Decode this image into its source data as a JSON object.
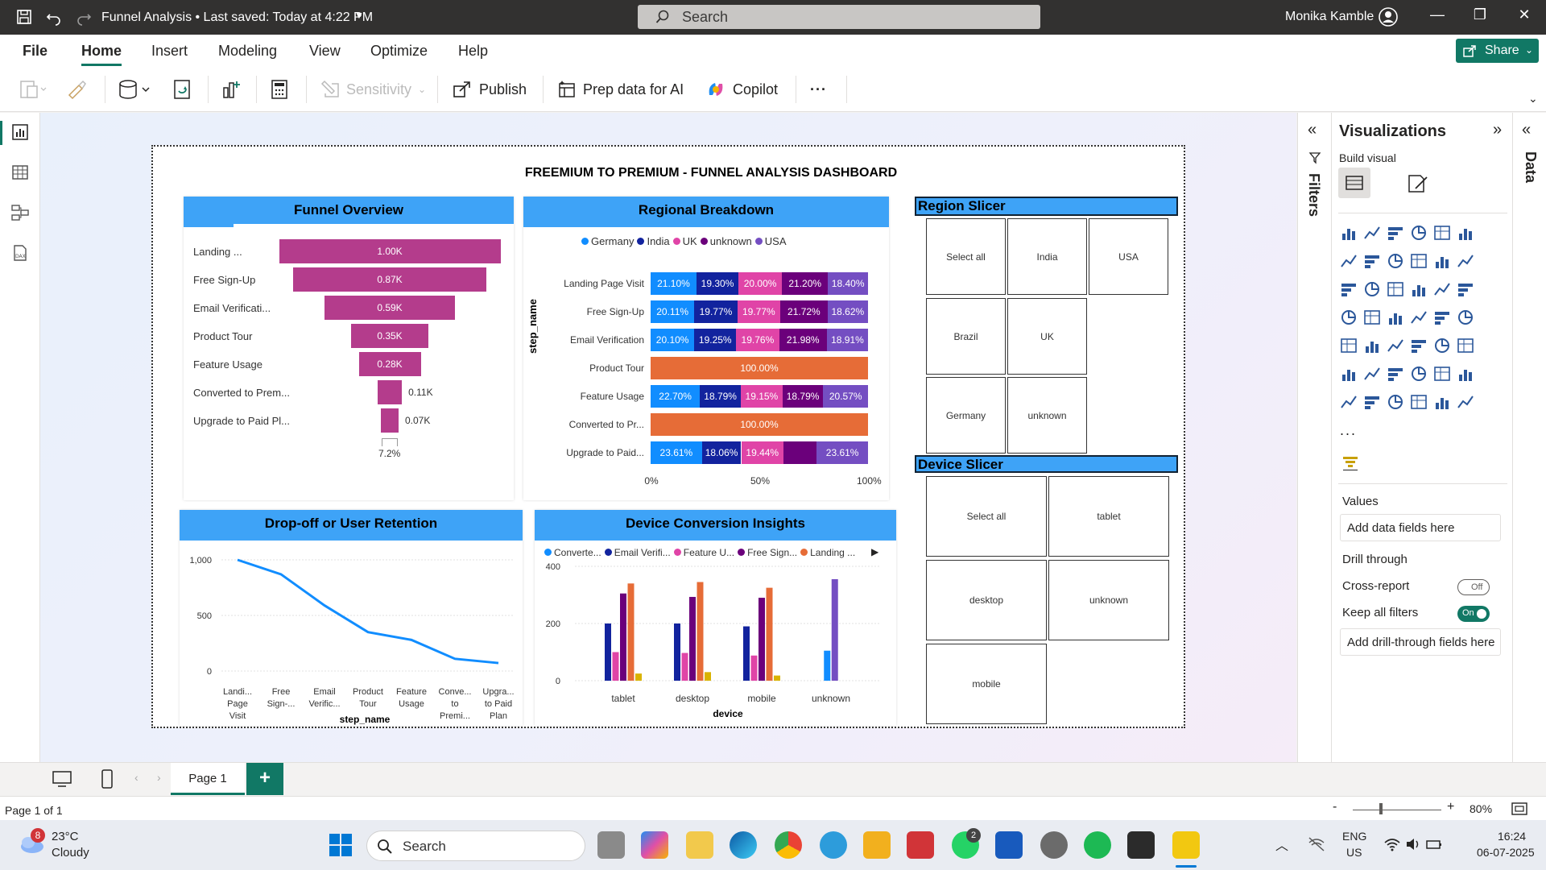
{
  "titlebar": {
    "title": "Funnel Analysis • Last saved: Today at 4:22 PM",
    "search_placeholder": "Search",
    "user": "Monika Kamble"
  },
  "menu": {
    "file": "File",
    "home": "Home",
    "insert": "Insert",
    "modeling": "Modeling",
    "view": "View",
    "optimize": "Optimize",
    "help": "Help",
    "share": "Share"
  },
  "ribbon": {
    "sensitivity": "Sensitivity",
    "publish": "Publish",
    "prep_data": "Prep data for AI",
    "copilot": "Copilot",
    "more": "···"
  },
  "dashboard": {
    "title": "FREEMIUM TO PREMIUM - FUNNEL ANALYSIS DASHBOARD"
  },
  "funnel": {
    "title": "Funnel Overview",
    "rows": [
      {
        "label": "Landing ...",
        "value": "1.00K",
        "fraction": 1.0
      },
      {
        "label": "Free Sign-Up",
        "value": "0.87K",
        "fraction": 0.87
      },
      {
        "label": "Email Verificati...",
        "value": "0.59K",
        "fraction": 0.59
      },
      {
        "label": "Product Tour",
        "value": "0.35K",
        "fraction": 0.35
      },
      {
        "label": "Feature Usage",
        "value": "0.28K",
        "fraction": 0.28
      },
      {
        "label": "Converted to Prem...",
        "value": "0.11K",
        "fraction": 0.11
      },
      {
        "label": "Upgrade to Paid Pl...",
        "value": "0.07K",
        "fraction": 0.07
      }
    ],
    "footer": "7.2%"
  },
  "regional": {
    "title": "Regional Breakdown",
    "legend": [
      "Germany",
      "India",
      "UK",
      "unknown",
      "USA"
    ],
    "ylabel": "step_name",
    "xticks": [
      "0%",
      "50%",
      "100%"
    ],
    "colors": {
      "Germany": "#118dff",
      "India": "#12239e",
      "UK": "#e044a7",
      "unknown": "#6b007b",
      "USA": "#744ec2",
      "single": "#e66c37"
    },
    "rows": [
      {
        "label": "Landing Page Visit",
        "segments": [
          21.1,
          19.3,
          20.0,
          21.2,
          18.4
        ],
        "texts": [
          "21.10%",
          "19.30%",
          "20.00%",
          "21.20%",
          "18.40%"
        ]
      },
      {
        "label": "Free Sign-Up",
        "segments": [
          20.11,
          19.77,
          19.77,
          21.72,
          18.62
        ],
        "texts": [
          "20.11%",
          "19.77%",
          "19.77%",
          "21.72%",
          "18.62%"
        ]
      },
      {
        "label": "Email Verification",
        "segments": [
          20.1,
          19.25,
          19.76,
          21.98,
          18.91
        ],
        "texts": [
          "20.10%",
          "19.25%",
          "19.76%",
          "21.98%",
          "18.91%"
        ]
      },
      {
        "label": "Product Tour",
        "segments": [
          100
        ],
        "texts": [
          "100.00%"
        ],
        "single": true
      },
      {
        "label": "Feature Usage",
        "segments": [
          22.7,
          18.79,
          19.15,
          18.79,
          20.57
        ],
        "texts": [
          "22.70%",
          "18.79%",
          "19.15%",
          "18.79%",
          "20.57%"
        ]
      },
      {
        "label": "Converted to Pr...",
        "segments": [
          100
        ],
        "texts": [
          "100.00%"
        ],
        "single": true
      },
      {
        "label": "Upgrade to Paid...",
        "segments": [
          23.61,
          18.06,
          19.44,
          15.28,
          23.61
        ],
        "texts": [
          "23.61%",
          "18.06%",
          "19.44%",
          "",
          "23.61%"
        ]
      }
    ]
  },
  "dropoff": {
    "title": "Drop-off or User Retention",
    "xlabel": "step_name",
    "yticks": [
      "1,000",
      "500",
      "0"
    ],
    "ymax": 1000,
    "categories": [
      [
        "Landi...",
        "Page",
        "Visit"
      ],
      [
        "Free",
        "Sign-..."
      ],
      [
        "Email",
        "Verific..."
      ],
      [
        "Product",
        "Tour"
      ],
      [
        "Feature",
        "Usage"
      ],
      [
        "Conve...",
        "to",
        "Premi..."
      ],
      [
        "Upgra...",
        "to Paid",
        "Plan"
      ]
    ],
    "values": [
      1000,
      870,
      590,
      350,
      280,
      110,
      72
    ]
  },
  "device": {
    "title": "Device Conversion Insights",
    "legend": [
      "Converte...",
      "Email Verifi...",
      "Feature U...",
      "Free Sign...",
      "Landing ..."
    ],
    "legend_colors": [
      "#118dff",
      "#12239e",
      "#e044a7",
      "#6b007b",
      "#e66c37"
    ],
    "xlabel": "device",
    "yticks": [
      "400",
      "200",
      "0"
    ],
    "ymax": 400,
    "categories": [
      "tablet",
      "desktop",
      "mobile",
      "unknown"
    ],
    "series": [
      {
        "color": "#118dff",
        "values": [
          0,
          0,
          0,
          105
        ]
      },
      {
        "color": "#12239e",
        "values": [
          200,
          200,
          190,
          0
        ]
      },
      {
        "color": "#e044a7",
        "values": [
          100,
          97,
          88,
          0
        ]
      },
      {
        "color": "#6b007b",
        "values": [
          305,
          293,
          290,
          0
        ]
      },
      {
        "color": "#e66c37",
        "values": [
          340,
          345,
          325,
          0
        ]
      },
      {
        "color": "#d9b300",
        "values": [
          25,
          30,
          18,
          0
        ]
      },
      {
        "color": "#744ec2",
        "values": [
          0,
          0,
          0,
          355
        ]
      }
    ]
  },
  "region_slicer": {
    "title": "Region Slicer",
    "items": [
      "Select all",
      "India",
      "USA",
      "Brazil",
      "UK",
      "Germany",
      "unknown"
    ]
  },
  "device_slicer": {
    "title": "Device Slicer",
    "items": [
      "Select all",
      "tablet",
      "desktop",
      "unknown",
      "mobile"
    ]
  },
  "filters_pane": {
    "label": "Filters"
  },
  "viz_pane": {
    "title": "Visualizations",
    "build_visual": "Build visual",
    "values": "Values",
    "add_fields": "Add data fields here",
    "drill_through": "Drill through",
    "cross_report": "Cross-report",
    "cross_report_state": "Off",
    "keep_filters": "Keep all filters",
    "keep_filters_state": "On",
    "add_drill": "Add drill-through fields here",
    "more": "..."
  },
  "data_pane": {
    "label": "Data"
  },
  "pages": {
    "page1": "Page 1",
    "add": "+"
  },
  "status": {
    "page_info": "Page 1 of 1",
    "zoom": "80%"
  },
  "taskbar": {
    "weather_temp": "23°C",
    "weather_desc": "Cloudy",
    "weather_badge": "8",
    "search": "Search",
    "lang1": "ENG",
    "lang2": "US",
    "time": "16:24",
    "date": "06-07-2025",
    "whatsapp_badge": "2"
  }
}
